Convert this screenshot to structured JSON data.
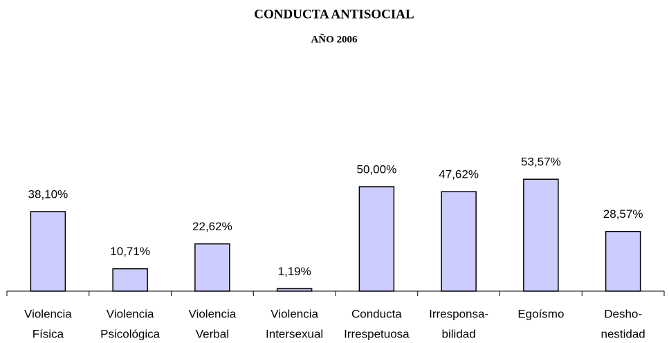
{
  "chart_data": {
    "type": "bar",
    "title": "CONDUCTA ANTISOCIAL",
    "subtitle": "AÑO 2006",
    "categories": [
      [
        "Violencia",
        "Física"
      ],
      [
        "Violencia",
        "Psicológica"
      ],
      [
        "Violencia",
        "Verbal"
      ],
      [
        "Violencia",
        "Intersexual"
      ],
      [
        "Conducta",
        "Irrespetuosa"
      ],
      [
        "Irresponsa-",
        "bilidad"
      ],
      [
        "Egoísmo"
      ],
      [
        "Desho-",
        "nestidad"
      ]
    ],
    "values": [
      38.1,
      10.71,
      22.62,
      1.19,
      50.0,
      47.62,
      53.57,
      28.57
    ],
    "value_labels": [
      "38,10%",
      "10,71%",
      "22,62%",
      "1,19%",
      "50,00%",
      "47,62%",
      "53,57%",
      "28,57%"
    ],
    "color": "#ccccff"
  }
}
